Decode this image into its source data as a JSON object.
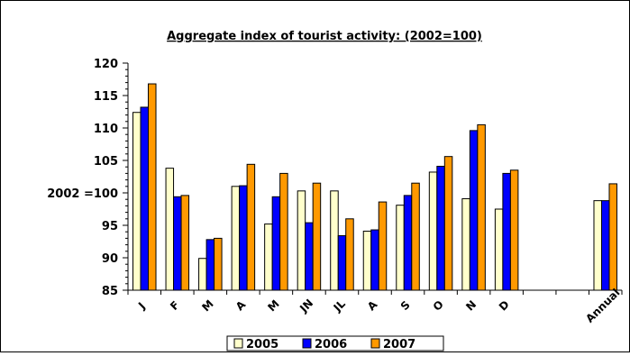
{
  "chart_data": {
    "type": "bar",
    "title": "Aggregate index of tourist activity: (2002=100)",
    "ylabel": "2002 =100",
    "xlabel": "",
    "ylim": [
      85,
      120
    ],
    "yticks": [
      85,
      90,
      95,
      100,
      105,
      110,
      115,
      120
    ],
    "ytick_labels": [
      "85",
      "90",
      "95",
      "2002 =100",
      "105",
      "110",
      "115",
      "120"
    ],
    "categories": [
      "J",
      "F",
      "M",
      "A",
      "M",
      "JN",
      "JL",
      "A",
      "S",
      "O",
      "N",
      "D",
      "",
      "",
      "Annual"
    ],
    "grid": false,
    "legend": "bottom",
    "series": [
      {
        "name": "2005",
        "color": "#ffffcc",
        "values": [
          112.4,
          103.8,
          89.9,
          101.0,
          95.2,
          100.3,
          100.3,
          94.1,
          98.1,
          103.2,
          99.1,
          97.5,
          null,
          null,
          98.8
        ]
      },
      {
        "name": "2006",
        "color": "#0000ff",
        "values": [
          113.2,
          99.4,
          92.8,
          101.1,
          99.4,
          95.4,
          93.4,
          94.3,
          99.6,
          104.1,
          109.6,
          103.0,
          null,
          null,
          98.8
        ]
      },
      {
        "name": "2007",
        "color": "#ff9900",
        "values": [
          116.8,
          99.6,
          93.0,
          104.4,
          103.0,
          101.5,
          96.0,
          98.6,
          101.5,
          105.6,
          110.5,
          103.5,
          null,
          null,
          101.4
        ]
      }
    ]
  }
}
